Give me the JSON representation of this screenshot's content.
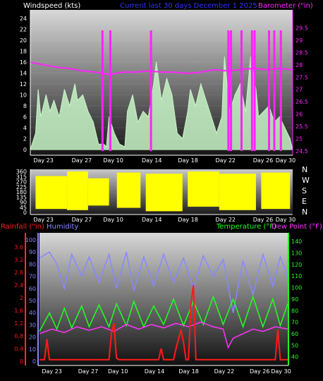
{
  "colors": {
    "wind": "#c8f5c8",
    "wind_avg": "#ffffff",
    "barometer": "#ff22ff",
    "direction": "#ffff00",
    "rain": "#ff1a1a",
    "humidity": "#8888ff",
    "temperature": "#22ff22",
    "dew_point": "#ff33ff"
  },
  "chart_data": [
    {
      "type": "area",
      "title": "Current last 30 days December 1 2025",
      "left_axis_label": "Windspeed (kts)",
      "right_axis_label": "Barometer (\"in)",
      "y_left_ticks": [
        "0",
        "2",
        "4",
        "6",
        "8",
        "10",
        "12",
        "14",
        "16",
        "18",
        "20",
        "22",
        "24"
      ],
      "y_left_range": [
        0,
        25
      ],
      "y_right_ticks": [
        "24.5",
        "25",
        "25.5",
        "26",
        "26.5",
        "27",
        "27.5",
        "28",
        "28.5",
        "29",
        "29.5"
      ],
      "y_right_range": [
        24.5,
        30
      ],
      "x_ticks": [
        "Day 23",
        "Day 27",
        "Day 10",
        "Day 14",
        "Day 18",
        "Day 22",
        "Day 26",
        "Day 30"
      ],
      "x_tick_pos": [
        0.05,
        0.196,
        0.316,
        0.463,
        0.601,
        0.744,
        0.887,
        0.973
      ],
      "gust_series": [
        {
          "x": 0.01,
          "y": 1.5
        },
        {
          "x": 0.02,
          "y": 3
        },
        {
          "x": 0.03,
          "y": 11
        },
        {
          "x": 0.04,
          "y": 6
        },
        {
          "x": 0.05,
          "y": 8
        },
        {
          "x": 0.06,
          "y": 10
        },
        {
          "x": 0.075,
          "y": 7
        },
        {
          "x": 0.09,
          "y": 9
        },
        {
          "x": 0.11,
          "y": 6
        },
        {
          "x": 0.13,
          "y": 11
        },
        {
          "x": 0.15,
          "y": 8
        },
        {
          "x": 0.17,
          "y": 12
        },
        {
          "x": 0.18,
          "y": 9
        },
        {
          "x": 0.2,
          "y": 10
        },
        {
          "x": 0.22,
          "y": 7
        },
        {
          "x": 0.24,
          "y": 5
        },
        {
          "x": 0.26,
          "y": 1
        },
        {
          "x": 0.28,
          "y": 1
        },
        {
          "x": 0.29,
          "y": 0.5
        },
        {
          "x": 0.3,
          "y": 6
        },
        {
          "x": 0.32,
          "y": 3
        },
        {
          "x": 0.34,
          "y": 1
        },
        {
          "x": 0.36,
          "y": 0.5
        },
        {
          "x": 0.37,
          "y": 7
        },
        {
          "x": 0.39,
          "y": 10
        },
        {
          "x": 0.41,
          "y": 5
        },
        {
          "x": 0.43,
          "y": 7
        },
        {
          "x": 0.45,
          "y": 6
        },
        {
          "x": 0.47,
          "y": 12
        },
        {
          "x": 0.48,
          "y": 16
        },
        {
          "x": 0.5,
          "y": 9
        },
        {
          "x": 0.52,
          "y": 13
        },
        {
          "x": 0.54,
          "y": 10
        },
        {
          "x": 0.56,
          "y": 3
        },
        {
          "x": 0.58,
          "y": 2
        },
        {
          "x": 0.6,
          "y": 7
        },
        {
          "x": 0.61,
          "y": 11
        },
        {
          "x": 0.63,
          "y": 8
        },
        {
          "x": 0.65,
          "y": 12
        },
        {
          "x": 0.67,
          "y": 9
        },
        {
          "x": 0.69,
          "y": 6
        },
        {
          "x": 0.71,
          "y": 3
        },
        {
          "x": 0.73,
          "y": 6
        },
        {
          "x": 0.74,
          "y": 17
        },
        {
          "x": 0.76,
          "y": 7
        },
        {
          "x": 0.78,
          "y": 10
        },
        {
          "x": 0.8,
          "y": 12
        },
        {
          "x": 0.82,
          "y": 7
        },
        {
          "x": 0.84,
          "y": 17
        },
        {
          "x": 0.86,
          "y": 11
        },
        {
          "x": 0.87,
          "y": 6
        },
        {
          "x": 0.89,
          "y": 7
        },
        {
          "x": 0.91,
          "y": 8
        },
        {
          "x": 0.93,
          "y": 5
        },
        {
          "x": 0.95,
          "y": 6
        },
        {
          "x": 0.97,
          "y": 4
        },
        {
          "x": 0.99,
          "y": 2
        }
      ],
      "barometer_series": [
        {
          "x": 0.0,
          "y": 28.1
        },
        {
          "x": 0.05,
          "y": 28.0
        },
        {
          "x": 0.1,
          "y": 27.9
        },
        {
          "x": 0.15,
          "y": 27.85
        },
        {
          "x": 0.2,
          "y": 27.75
        },
        {
          "x": 0.25,
          "y": 27.7
        },
        {
          "x": 0.3,
          "y": 27.6
        },
        {
          "x": 0.35,
          "y": 27.7
        },
        {
          "x": 0.4,
          "y": 27.7
        },
        {
          "x": 0.45,
          "y": 27.75
        },
        {
          "x": 0.5,
          "y": 27.7
        },
        {
          "x": 0.55,
          "y": 27.7
        },
        {
          "x": 0.6,
          "y": 27.65
        },
        {
          "x": 0.65,
          "y": 27.7
        },
        {
          "x": 0.7,
          "y": 27.8
        },
        {
          "x": 0.75,
          "y": 27.75
        },
        {
          "x": 0.8,
          "y": 27.8
        },
        {
          "x": 0.85,
          "y": 27.85
        },
        {
          "x": 0.9,
          "y": 27.8
        },
        {
          "x": 0.95,
          "y": 27.85
        },
        {
          "x": 1.0,
          "y": 27.8
        }
      ],
      "barometer_spikes": [
        0.275,
        0.305,
        0.46,
        0.755,
        0.765,
        0.805,
        0.845,
        0.855,
        0.91,
        0.93,
        0.955
      ]
    },
    {
      "type": "area",
      "title": "",
      "y_ticks": [
        "0",
        "45",
        "90",
        "135",
        "180",
        "225",
        "270",
        "315",
        "360"
      ],
      "y_range": [
        0,
        360
      ],
      "direction_labels": [
        "N",
        "W",
        "S",
        "E",
        "N"
      ],
      "x_ticks": [
        "Day 23",
        "Day 27",
        "Day 10",
        "Day 14",
        "Day 18",
        "Day 22",
        "Day 26",
        "Day 30"
      ],
      "bands": [
        {
          "x0": 0.02,
          "x1": 0.14,
          "min": 30,
          "max": 320
        },
        {
          "x0": 0.14,
          "x1": 0.22,
          "min": 20,
          "max": 360
        },
        {
          "x0": 0.22,
          "x1": 0.3,
          "min": 60,
          "max": 300
        },
        {
          "x0": 0.33,
          "x1": 0.42,
          "min": 40,
          "max": 350
        },
        {
          "x0": 0.44,
          "x1": 0.58,
          "min": 10,
          "max": 340
        },
        {
          "x0": 0.6,
          "x1": 0.72,
          "min": 50,
          "max": 360
        },
        {
          "x0": 0.72,
          "x1": 0.86,
          "min": 20,
          "max": 340
        },
        {
          "x0": 0.88,
          "x1": 0.99,
          "min": 30,
          "max": 350
        }
      ]
    },
    {
      "type": "line",
      "left_axis_label_1": "Rainfall (\"in)",
      "left_axis_label_2": "Humidity",
      "right_axis_label_1": "Temperature (°F)",
      "right_axis_label_2": "Dew Point (°F)",
      "rain_ticks": [
        "0",
        "0.4",
        "0.8",
        "1.2",
        "1.6",
        "2",
        "2.4",
        "2.8",
        "3.2",
        "3.6"
      ],
      "rain_range": [
        0,
        4.0
      ],
      "humidity_ticks": [
        "0",
        "10",
        "20",
        "30",
        "40",
        "50",
        "60",
        "70",
        "80",
        "90",
        "100"
      ],
      "humidity_range": [
        0,
        100
      ],
      "temp_ticks": [
        "40",
        "50",
        "60",
        "70",
        "80",
        "90",
        "100",
        "110",
        "120",
        "130",
        "140"
      ],
      "temp_range": [
        30,
        145
      ],
      "x_ticks": [
        "Day 23",
        "Day 27",
        "Day 10",
        "Day 14",
        "Day 18",
        "Day 22",
        "Day 26",
        "Day 30"
      ],
      "humidity_series": [
        {
          "x": 0.0,
          "y": 85
        },
        {
          "x": 0.04,
          "y": 90
        },
        {
          "x": 0.07,
          "y": 80
        },
        {
          "x": 0.1,
          "y": 60
        },
        {
          "x": 0.13,
          "y": 88
        },
        {
          "x": 0.17,
          "y": 70
        },
        {
          "x": 0.2,
          "y": 86
        },
        {
          "x": 0.24,
          "y": 65
        },
        {
          "x": 0.28,
          "y": 88
        },
        {
          "x": 0.31,
          "y": 60
        },
        {
          "x": 0.35,
          "y": 90
        },
        {
          "x": 0.38,
          "y": 58
        },
        {
          "x": 0.42,
          "y": 86
        },
        {
          "x": 0.46,
          "y": 62
        },
        {
          "x": 0.5,
          "y": 88
        },
        {
          "x": 0.54,
          "y": 65
        },
        {
          "x": 0.58,
          "y": 85
        },
        {
          "x": 0.62,
          "y": 60
        },
        {
          "x": 0.66,
          "y": 87
        },
        {
          "x": 0.7,
          "y": 70
        },
        {
          "x": 0.74,
          "y": 84
        },
        {
          "x": 0.78,
          "y": 40
        },
        {
          "x": 0.82,
          "y": 83
        },
        {
          "x": 0.86,
          "y": 55
        },
        {
          "x": 0.9,
          "y": 88
        },
        {
          "x": 0.94,
          "y": 62
        },
        {
          "x": 0.97,
          "y": 86
        },
        {
          "x": 1.0,
          "y": 70
        }
      ],
      "temperature_series": [
        {
          "x": 0.0,
          "y": 62
        },
        {
          "x": 0.04,
          "y": 78
        },
        {
          "x": 0.07,
          "y": 64
        },
        {
          "x": 0.1,
          "y": 82
        },
        {
          "x": 0.13,
          "y": 65
        },
        {
          "x": 0.17,
          "y": 84
        },
        {
          "x": 0.2,
          "y": 66
        },
        {
          "x": 0.24,
          "y": 85
        },
        {
          "x": 0.28,
          "y": 66
        },
        {
          "x": 0.31,
          "y": 86
        },
        {
          "x": 0.35,
          "y": 67
        },
        {
          "x": 0.38,
          "y": 88
        },
        {
          "x": 0.42,
          "y": 66
        },
        {
          "x": 0.46,
          "y": 84
        },
        {
          "x": 0.5,
          "y": 68
        },
        {
          "x": 0.54,
          "y": 90
        },
        {
          "x": 0.58,
          "y": 67
        },
        {
          "x": 0.62,
          "y": 88
        },
        {
          "x": 0.66,
          "y": 68
        },
        {
          "x": 0.7,
          "y": 92
        },
        {
          "x": 0.74,
          "y": 68
        },
        {
          "x": 0.78,
          "y": 90
        },
        {
          "x": 0.82,
          "y": 66
        },
        {
          "x": 0.86,
          "y": 92
        },
        {
          "x": 0.9,
          "y": 66
        },
        {
          "x": 0.94,
          "y": 90
        },
        {
          "x": 0.97,
          "y": 67
        },
        {
          "x": 1.0,
          "y": 86
        }
      ],
      "dew_point_series": [
        {
          "x": 0.0,
          "y": 60
        },
        {
          "x": 0.05,
          "y": 64
        },
        {
          "x": 0.1,
          "y": 61
        },
        {
          "x": 0.15,
          "y": 66
        },
        {
          "x": 0.2,
          "y": 63
        },
        {
          "x": 0.25,
          "y": 66
        },
        {
          "x": 0.3,
          "y": 62
        },
        {
          "x": 0.35,
          "y": 68
        },
        {
          "x": 0.4,
          "y": 64
        },
        {
          "x": 0.45,
          "y": 68
        },
        {
          "x": 0.5,
          "y": 65
        },
        {
          "x": 0.55,
          "y": 69
        },
        {
          "x": 0.6,
          "y": 66
        },
        {
          "x": 0.65,
          "y": 70
        },
        {
          "x": 0.7,
          "y": 66
        },
        {
          "x": 0.74,
          "y": 64
        },
        {
          "x": 0.76,
          "y": 48
        },
        {
          "x": 0.78,
          "y": 56
        },
        {
          "x": 0.82,
          "y": 60
        },
        {
          "x": 0.86,
          "y": 64
        },
        {
          "x": 0.9,
          "y": 62
        },
        {
          "x": 0.95,
          "y": 66
        },
        {
          "x": 1.0,
          "y": 64
        }
      ],
      "rain_series": [
        {
          "x": 0.0,
          "y": 0.05
        },
        {
          "x": 0.02,
          "y": 0.05
        },
        {
          "x": 0.03,
          "y": 0.7
        },
        {
          "x": 0.04,
          "y": 0.05
        },
        {
          "x": 0.28,
          "y": 0.05
        },
        {
          "x": 0.29,
          "y": 0.9
        },
        {
          "x": 0.3,
          "y": 1.2
        },
        {
          "x": 0.31,
          "y": 0.1
        },
        {
          "x": 0.32,
          "y": 0.05
        },
        {
          "x": 0.48,
          "y": 0.05
        },
        {
          "x": 0.49,
          "y": 0.4
        },
        {
          "x": 0.5,
          "y": 0.05
        },
        {
          "x": 0.54,
          "y": 0.05
        },
        {
          "x": 0.55,
          "y": 0.4
        },
        {
          "x": 0.56,
          "y": 0.7
        },
        {
          "x": 0.57,
          "y": 1.0
        },
        {
          "x": 0.58,
          "y": 0.6
        },
        {
          "x": 0.59,
          "y": 0.05
        },
        {
          "x": 0.6,
          "y": 0.05
        },
        {
          "x": 0.61,
          "y": 1.8
        },
        {
          "x": 0.62,
          "y": 2.4
        },
        {
          "x": 0.63,
          "y": 0.05
        },
        {
          "x": 0.95,
          "y": 0.05
        },
        {
          "x": 0.96,
          "y": 1.0
        },
        {
          "x": 0.97,
          "y": 0.05
        },
        {
          "x": 1.0,
          "y": 0.05
        }
      ]
    }
  ]
}
